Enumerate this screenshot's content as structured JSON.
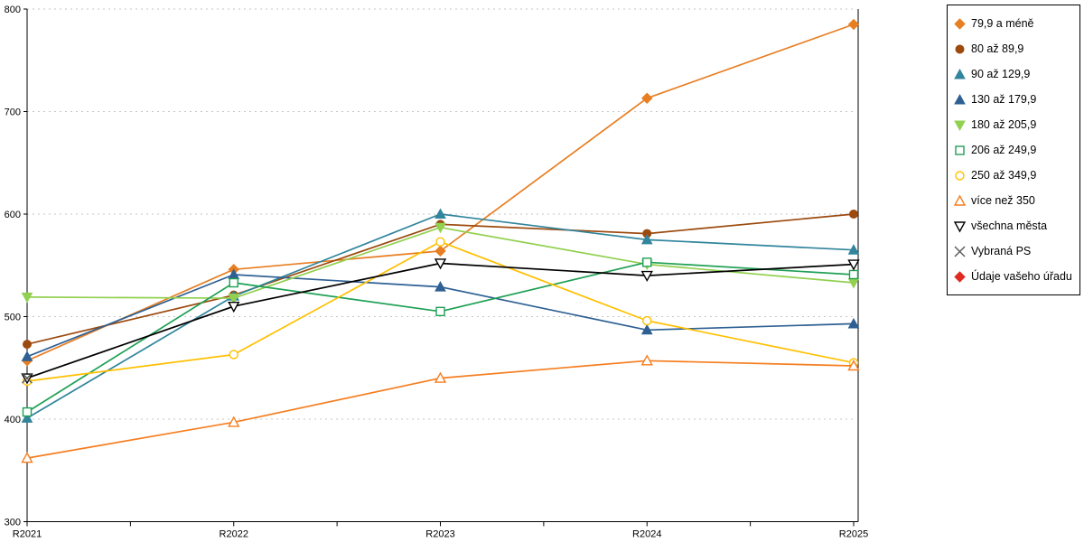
{
  "chart_data": {
    "type": "line",
    "title": "",
    "xlabel": "",
    "ylabel": "",
    "categories": [
      "R2021",
      "R2022",
      "R2023",
      "R2024",
      "R2025"
    ],
    "ylim": [
      300,
      800
    ],
    "yticks": [
      300,
      400,
      500,
      600,
      700,
      800
    ],
    "grid": "horizontal-dashed",
    "gridline_color": "#c6c6c6",
    "axis_color": "#000000",
    "legend_position": "right",
    "series": [
      {
        "name": "79,9 a méně",
        "marker": "diamond",
        "fill": "filled",
        "color": "#e87e22",
        "values": [
          457,
          546,
          564,
          713,
          785
        ]
      },
      {
        "name": "80 až 89,9",
        "marker": "circle",
        "fill": "filled",
        "color": "#9c4a0e",
        "values": [
          473,
          521,
          590,
          581,
          600
        ]
      },
      {
        "name": "90 až 129,9",
        "marker": "triangle-up",
        "fill": "filled",
        "color": "#31859c",
        "values": [
          401,
          520,
          600,
          575,
          565
        ]
      },
      {
        "name": "130 až 179,9",
        "marker": "triangle-up",
        "fill": "filled",
        "color": "#2e6093",
        "values": [
          461,
          541,
          529,
          487,
          493
        ]
      },
      {
        "name": "180 až 205,9",
        "marker": "triangle-down",
        "fill": "filled",
        "color": "#92d050",
        "values": [
          519,
          518,
          587,
          551,
          533
        ]
      },
      {
        "name": "206 až 249,9",
        "marker": "square",
        "fill": "open",
        "color": "#1fa055",
        "values": [
          407,
          533,
          505,
          553,
          541
        ]
      },
      {
        "name": "250 až 349,9",
        "marker": "circle",
        "fill": "open",
        "color": "#ffc000",
        "values": [
          437,
          463,
          573,
          496,
          455
        ]
      },
      {
        "name": "více než 350",
        "marker": "triangle-up",
        "fill": "open",
        "color": "#f57e20",
        "values": [
          362,
          397,
          440,
          457,
          452
        ]
      },
      {
        "name": "všechna města",
        "marker": "triangle-down",
        "fill": "open",
        "color": "#000000",
        "values": [
          440,
          510,
          552,
          540,
          551
        ]
      },
      {
        "name": "Vybraná PS",
        "marker": "x",
        "fill": "open",
        "color": "#595959",
        "values": [
          440,
          null,
          null,
          null,
          null
        ]
      },
      {
        "name": "Údaje vašeho úřadu",
        "marker": "diamond",
        "fill": "filled",
        "color": "#e02b20",
        "values": [
          null,
          null,
          null,
          null,
          null
        ]
      }
    ]
  }
}
